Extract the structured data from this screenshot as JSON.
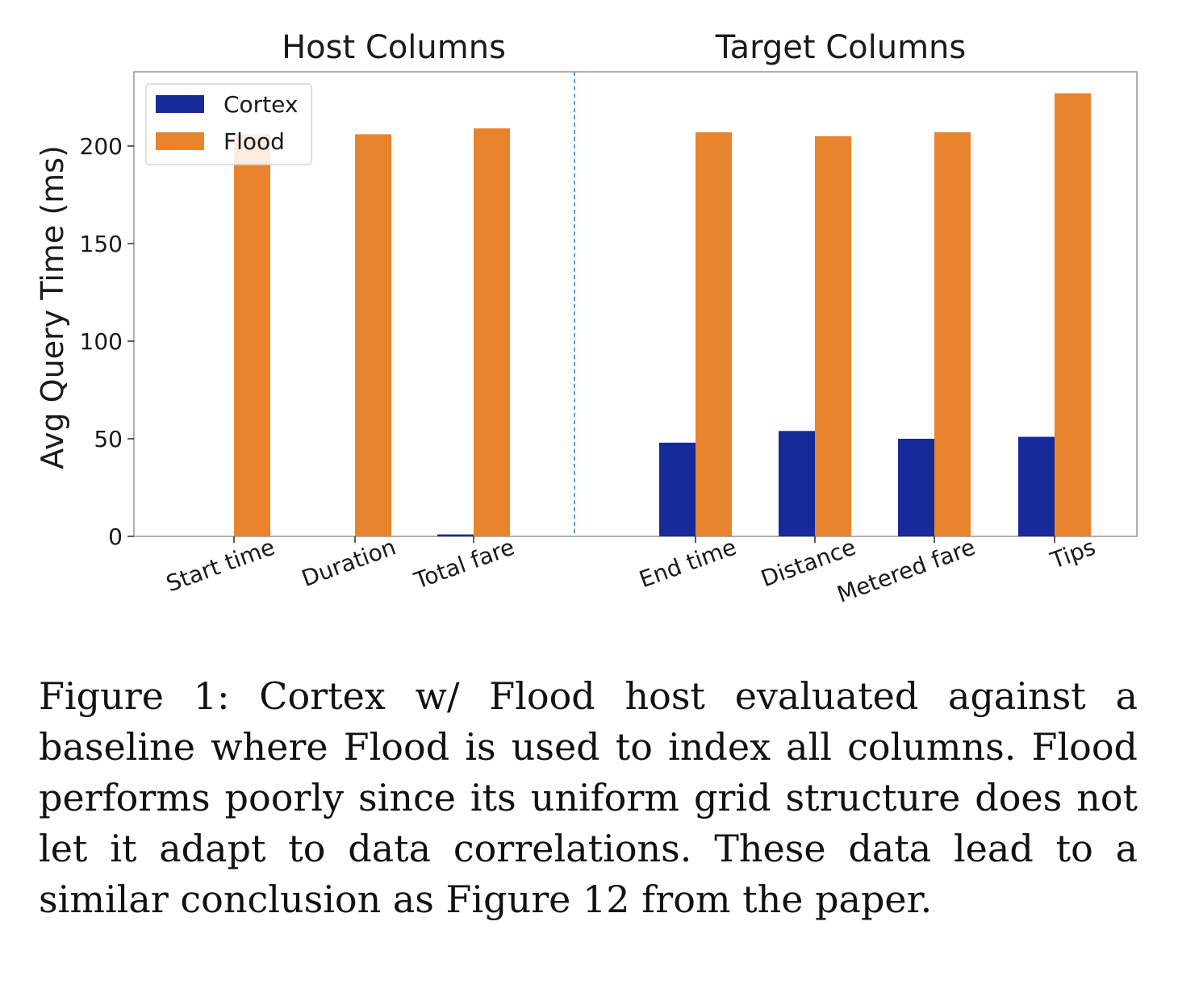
{
  "chart_data": {
    "type": "bar",
    "group_titles": [
      "Host Columns",
      "Target Columns"
    ],
    "ylabel": "Avg Query Time (ms)",
    "ylim": [
      0,
      238
    ],
    "yticks": [
      0,
      50,
      100,
      150,
      200
    ],
    "grid": false,
    "legend_position": "top-left",
    "groups": [
      {
        "title": "Host Columns",
        "categories": [
          "Start time",
          "Duration",
          "Total fare"
        ],
        "series": [
          {
            "name": "Cortex",
            "color": "#162a99",
            "values": [
              0,
              0,
              1
            ]
          },
          {
            "name": "Flood",
            "color": "#e8842e",
            "values": [
              206,
              206,
              209
            ]
          }
        ]
      },
      {
        "title": "Target Columns",
        "categories": [
          "End time",
          "Distance",
          "Metered fare",
          "Tips"
        ],
        "series": [
          {
            "name": "Cortex",
            "color": "#162a99",
            "values": [
              48,
              54,
              50,
              51
            ]
          },
          {
            "name": "Flood",
            "color": "#e8842e",
            "values": [
              207,
              205,
              207,
              227
            ]
          }
        ]
      }
    ],
    "legend": [
      {
        "name": "Cortex",
        "color": "#162a99"
      },
      {
        "name": "Flood",
        "color": "#e8842e"
      }
    ],
    "divider_color": "#5aa0dc"
  },
  "caption": "Figure 1: Cortex w/ Flood host evaluated against a baseline where Flood is used to index all columns. Flood performs poorly since its uniform grid structure does not let it adapt to data correlations. These data lead to a similar conclusion as Figure 12 from the paper."
}
